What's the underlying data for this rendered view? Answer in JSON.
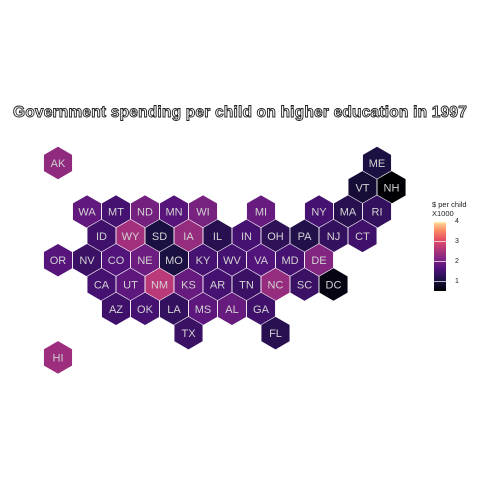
{
  "title": "Government spending per child on higher education in 1997",
  "legend": {
    "title_line1": "$ per child",
    "title_line2": "X1000",
    "ticks": [
      "4",
      "3",
      "2",
      "1"
    ],
    "range": [
      0.5,
      4
    ]
  },
  "colors": {
    "background": "#ffffff",
    "hex_border": "#ffffff",
    "label": "#d2d2d2",
    "scale": "magma"
  },
  "chart_data": {
    "type": "heatmap",
    "title": "Government spending per child on higher education in 1997",
    "legend_title": "$ per child X1000",
    "scale_range": [
      0.5,
      4
    ],
    "legend_ticks": [
      1,
      2,
      3,
      4
    ],
    "states": [
      {
        "abbr": "AK",
        "value": 1.95
      },
      {
        "abbr": "ME",
        "value": 0.95
      },
      {
        "abbr": "VT",
        "value": 0.85
      },
      {
        "abbr": "NH",
        "value": 0.5
      },
      {
        "abbr": "WA",
        "value": 1.55
      },
      {
        "abbr": "MT",
        "value": 1.3
      },
      {
        "abbr": "ND",
        "value": 1.7
      },
      {
        "abbr": "MN",
        "value": 1.45
      },
      {
        "abbr": "WI",
        "value": 1.75
      },
      {
        "abbr": "MI",
        "value": 1.6
      },
      {
        "abbr": "NY",
        "value": 1.3
      },
      {
        "abbr": "MA",
        "value": 1.05
      },
      {
        "abbr": "RI",
        "value": 1.15
      },
      {
        "abbr": "ID",
        "value": 1.25
      },
      {
        "abbr": "WY",
        "value": 2.1
      },
      {
        "abbr": "SD",
        "value": 0.95
      },
      {
        "abbr": "IA",
        "value": 2.0
      },
      {
        "abbr": "IL",
        "value": 1.05
      },
      {
        "abbr": "IN",
        "value": 1.3
      },
      {
        "abbr": "OH",
        "value": 1.1
      },
      {
        "abbr": "PA",
        "value": 1.0
      },
      {
        "abbr": "NJ",
        "value": 1.15
      },
      {
        "abbr": "CT",
        "value": 1.25
      },
      {
        "abbr": "OR",
        "value": 1.45
      },
      {
        "abbr": "NV",
        "value": 1.2
      },
      {
        "abbr": "CO",
        "value": 1.4
      },
      {
        "abbr": "NE",
        "value": 1.65
      },
      {
        "abbr": "MO",
        "value": 0.95
      },
      {
        "abbr": "KY",
        "value": 1.3
      },
      {
        "abbr": "WV",
        "value": 1.3
      },
      {
        "abbr": "VA",
        "value": 1.4
      },
      {
        "abbr": "MD",
        "value": 1.3
      },
      {
        "abbr": "DE",
        "value": 1.85
      },
      {
        "abbr": "CA",
        "value": 1.3
      },
      {
        "abbr": "UT",
        "value": 1.5
      },
      {
        "abbr": "NM",
        "value": 2.3
      },
      {
        "abbr": "KS",
        "value": 1.6
      },
      {
        "abbr": "AR",
        "value": 1.3
      },
      {
        "abbr": "TN",
        "value": 1.2
      },
      {
        "abbr": "NC",
        "value": 2.0
      },
      {
        "abbr": "SC",
        "value": 1.2
      },
      {
        "abbr": "DC",
        "value": 0.6
      },
      {
        "abbr": "AZ",
        "value": 1.25
      },
      {
        "abbr": "OK",
        "value": 1.3
      },
      {
        "abbr": "LA",
        "value": 1.15
      },
      {
        "abbr": "MS",
        "value": 1.5
      },
      {
        "abbr": "AL",
        "value": 1.6
      },
      {
        "abbr": "GA",
        "value": 1.25
      },
      {
        "abbr": "TX",
        "value": 1.2
      },
      {
        "abbr": "FL",
        "value": 1.05
      },
      {
        "abbr": "HI",
        "value": 2.05
      }
    ]
  }
}
